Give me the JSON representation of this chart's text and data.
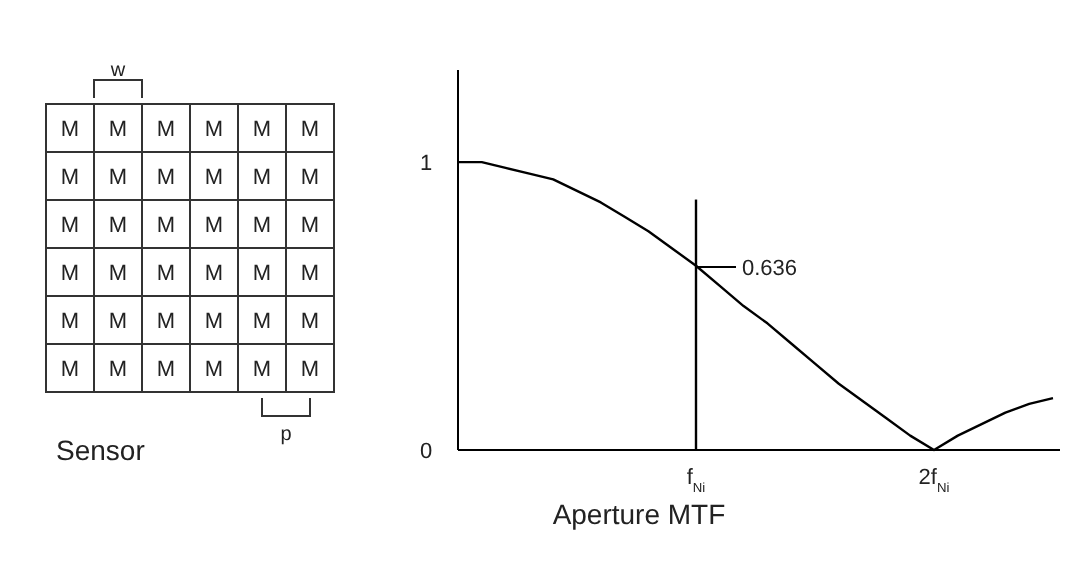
{
  "chart_data": {
    "type": "line",
    "xlabel": "Aperture MTF",
    "categories": [
      null,
      null,
      null,
      null,
      null,
      null,
      null,
      null,
      null,
      null,
      "f$_{Ni}$",
      null,
      null,
      null,
      null,
      null,
      null,
      null,
      null,
      null,
      "2f$_{Ni}$",
      null,
      null,
      null,
      null,
      null
    ],
    "ylim": [
      0,
      1.32
    ],
    "yticks": [
      0,
      1
    ],
    "series": [
      {
        "color": "#000000",
        "values": [
          1,
          1.0,
          0.98,
          0.96,
          0.94,
          0.9,
          0.86,
          0.81,
          0.76,
          0.7,
          0.64,
          0.57,
          0.5,
          0.44,
          0.37,
          0.3,
          0.23,
          0.17,
          0.11,
          0.05,
          0,
          0.05,
          0.09,
          0.13,
          0.16,
          0.18
        ]
      }
    ],
    "ref_lines": [
      {
        "axis": "x",
        "value": "f$_{Ni}$",
        "color": "#000000"
      }
    ],
    "annotations": [
      {
        "text": "0.636",
        "x": "f$_{Ni}$",
        "y": 0.636
      },
      "Sensor",
      "w",
      "p",
      "M"
    ],
    "grid": false,
    "marker": "none",
    "line_style": "solid"
  }
}
